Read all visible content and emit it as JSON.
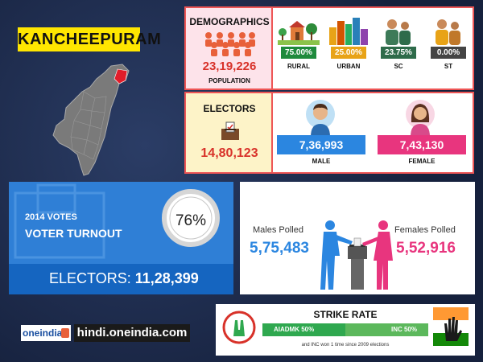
{
  "district": "KANCHEEPURAM",
  "demographics": {
    "title": "DEMOGRAPHICS",
    "population_value": "23,19,226",
    "population_label": "POPULATION",
    "rural": {
      "pct": "75.00%",
      "label": "RURAL"
    },
    "urban": {
      "pct": "25.00%",
      "label": "URBAN"
    },
    "sc": {
      "pct": "23.75%",
      "label": "SC"
    },
    "st": {
      "pct": "0.00%",
      "label": "ST"
    }
  },
  "electors": {
    "title": "ELECTORS",
    "total": "14,80,123",
    "male_value": "7,36,993",
    "male_label": "MALE",
    "female_value": "7,43,130",
    "female_label": "FEMALE"
  },
  "turnout": {
    "year_label": "2014 VOTES",
    "title": "VOTER TURNOUT",
    "percent": "76%",
    "electors_label": "ELECTORS:",
    "electors_value": "11,28,399"
  },
  "polled": {
    "males_label": "Males Polled",
    "males_value": "5,75,483",
    "females_label": "Females Polled",
    "females_value": "5,52,916"
  },
  "strike_rate": {
    "title": "STRIKE RATE",
    "left_label": "AIADMK 50%",
    "right_label": "INC 50%",
    "footnote": "and INC won 1 time since 2009 elections"
  },
  "branding": {
    "logo_text": "oneindia",
    "site": "hindi.oneindia.com"
  },
  "colors": {
    "rural": "#1e8a3c",
    "urban": "#e8a317",
    "sc": "#2e6b4a",
    "st": "#444444",
    "male": "#2b86e0",
    "female": "#e8357e",
    "aiadmk": "#2fa84f",
    "inc": "#4caf50"
  }
}
